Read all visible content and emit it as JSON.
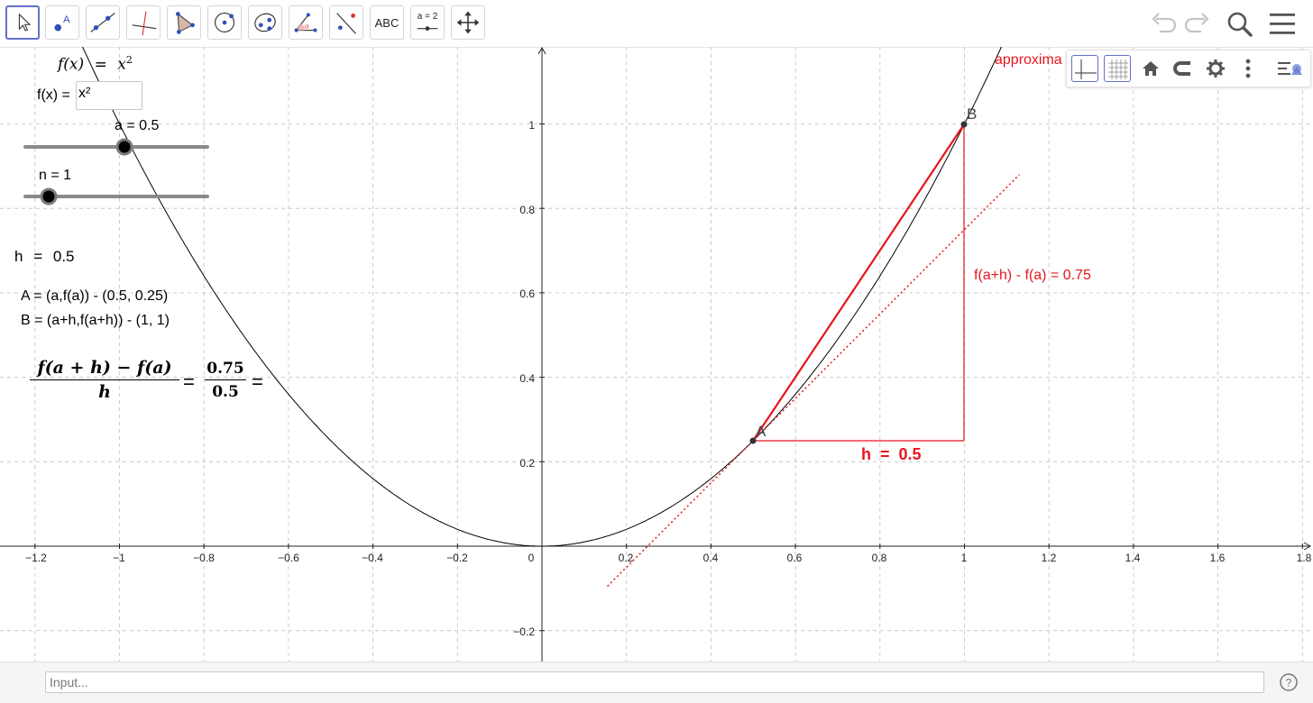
{
  "toolbar": {
    "tools": [
      "move-tool",
      "point-tool",
      "line-tool",
      "perpendicular-line-tool",
      "polygon-tool",
      "circle-tool",
      "conic-tool",
      "angle-tool",
      "reflect-tool",
      "text-tool",
      "slider-tool",
      "move-graphics-view-tool"
    ],
    "text_tool_label": "ABC",
    "slider_tool_label": "a = 2",
    "right_icons": [
      "undo-icon",
      "redo-icon",
      "search-icon",
      "menu-icon"
    ]
  },
  "algebra": {
    "function_display": {
      "lhs": "f(x)",
      "eq": "=",
      "rhs": "x",
      "exp": "2"
    },
    "input_label": "f(x) =",
    "input_value": "x²",
    "slider_a_label": "a = 0.5",
    "slider_a_value": 0.5,
    "slider_n_label": "n = 1",
    "slider_n_value": 1,
    "h_label": "h",
    "h_eq": "=",
    "h_value": "0.5",
    "A_text": "A = (a,f(a)) - (0.5, 0.25)",
    "B_text": "B = (a+h,f(a+h)) -  (1, 1)",
    "quotient": {
      "num": "f(a + h) − f(a)",
      "den": "h",
      "eq1": "=",
      "num_val": "0.75",
      "den_val": "0.5",
      "eq2": "="
    }
  },
  "graphics": {
    "x_ticks": [
      "−1.2",
      "−1",
      "−0.8",
      "−0.6",
      "−0.4",
      "−0.2",
      "0",
      "0.2",
      "0.4",
      "0.6",
      "0.8",
      "1",
      "1.2",
      "1.4",
      "1.6",
      "1.8"
    ],
    "y_ticks": [
      "1",
      "0.8",
      "0.6",
      "0.4",
      "0.2",
      "−0.2"
    ],
    "point_A_label": "A",
    "point_B_label": "B",
    "rise_label": "f(a+h) - f(a) = 0.75",
    "run_label": "h  =  0.5",
    "approx_label": "approxima",
    "colors": {
      "red": "#e8141e",
      "axis": "#222222",
      "grid": "#c0c0c0"
    }
  },
  "stylebar": {
    "icons": [
      "axes-icon",
      "grid-icon",
      "home-icon",
      "magnet-icon",
      "gear-icon",
      "more-icon",
      "style-toggle-icon"
    ]
  },
  "inputbar": {
    "placeholder": "Input...",
    "help_icon": "?"
  }
}
